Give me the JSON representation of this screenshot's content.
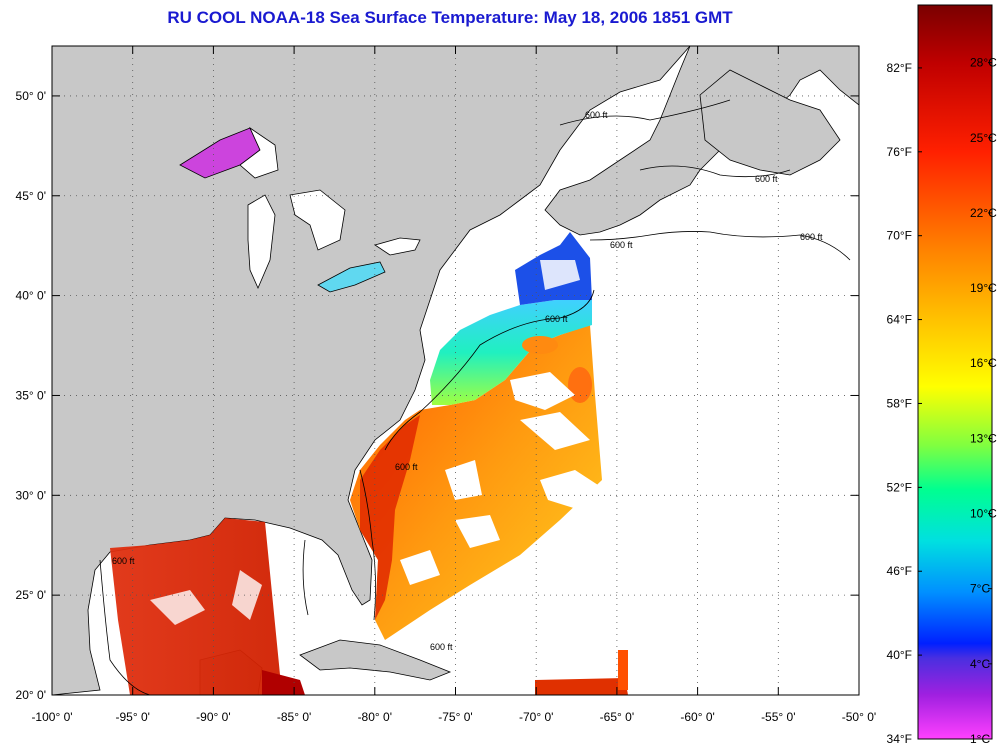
{
  "title": "RU COOL  NOAA-18  Sea Surface Temperature:  May 18, 2006 1851 GMT",
  "map": {
    "lon_range": [
      -100,
      -50
    ],
    "lat_range": [
      20,
      52.5
    ],
    "lon_ticks": [
      {
        "value": -100,
        "label": "-100° 0'"
      },
      {
        "value": -95,
        "label": "-95° 0'"
      },
      {
        "value": -90,
        "label": "-90° 0'"
      },
      {
        "value": -85,
        "label": "-85° 0'"
      },
      {
        "value": -80,
        "label": "-80° 0'"
      },
      {
        "value": -75,
        "label": "-75° 0'"
      },
      {
        "value": -70,
        "label": "-70° 0'"
      },
      {
        "value": -65,
        "label": "-65° 0'"
      },
      {
        "value": -60,
        "label": "-60° 0'"
      },
      {
        "value": -55,
        "label": "-55° 0'"
      },
      {
        "value": -50,
        "label": "-50° 0'"
      }
    ],
    "lat_ticks": [
      {
        "value": 50,
        "label": "50° 0'"
      },
      {
        "value": 45,
        "label": "45° 0'"
      },
      {
        "value": 40,
        "label": "40° 0'"
      },
      {
        "value": 35,
        "label": "35° 0'"
      },
      {
        "value": 30,
        "label": "30° 0'"
      },
      {
        "value": 25,
        "label": "25° 0'"
      },
      {
        "value": 20,
        "label": "20° 0'"
      }
    ],
    "contour_label": "600 ft",
    "land_color": "#c8c8c8",
    "ocean_nodata_color": "#ffffff"
  },
  "colorbar": {
    "fahrenheit": [
      "82°F",
      "76°F",
      "70°F",
      "64°F",
      "58°F",
      "52°F",
      "46°F",
      "40°F",
      "34°F"
    ],
    "celsius": [
      "28°C",
      "25°C",
      "22°C",
      "19°C",
      "16°C",
      "13°C",
      "10°C",
      "7°C",
      "4°C",
      "1°C"
    ],
    "colors_top_to_bottom": [
      "#8b0000",
      "#e00000",
      "#ff4000",
      "#ff8c00",
      "#ffc000",
      "#ffff00",
      "#80ff40",
      "#00ff90",
      "#00e0e0",
      "#00a0ff",
      "#0040ff",
      "#0000d0",
      "#8020e0",
      "#ff40ff"
    ]
  }
}
